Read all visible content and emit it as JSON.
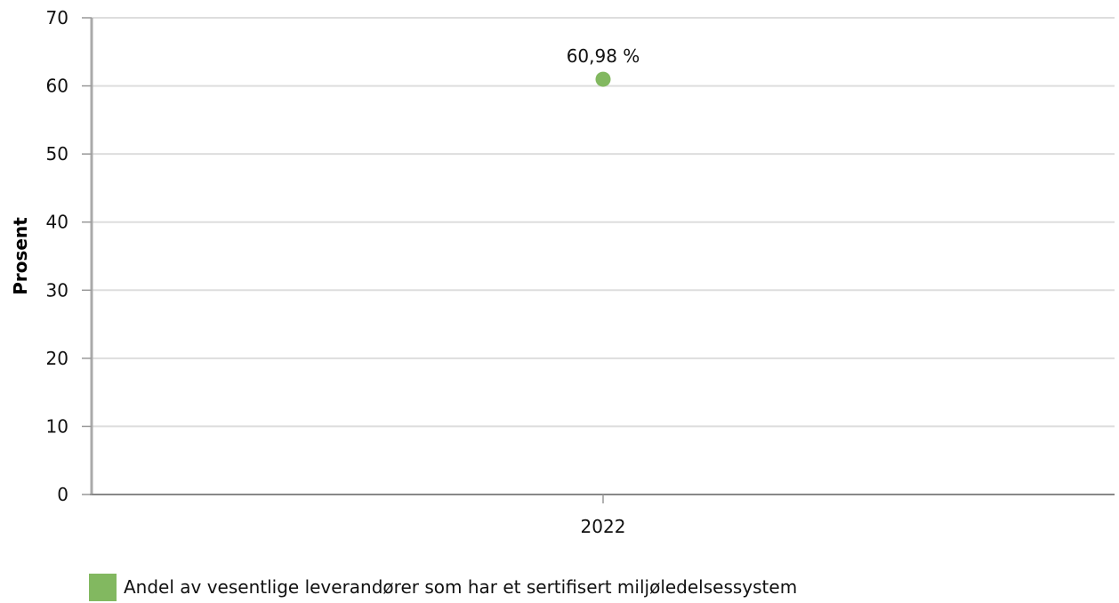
{
  "chart_data": {
    "type": "scatter",
    "title": "",
    "xlabel": "",
    "ylabel": "Prosent",
    "ylim": [
      0,
      70
    ],
    "y_ticks": [
      0,
      10,
      20,
      30,
      40,
      50,
      60,
      70
    ],
    "categories": [
      "2022"
    ],
    "grid": true,
    "legend_position": "bottom-left",
    "series": [
      {
        "name": "Andel av vesentlige leverandører som har et sertifisert miljøledelsessystem",
        "values": [
          60.98
        ],
        "labels": [
          "60,98 %"
        ],
        "color": "#82b860"
      }
    ]
  }
}
